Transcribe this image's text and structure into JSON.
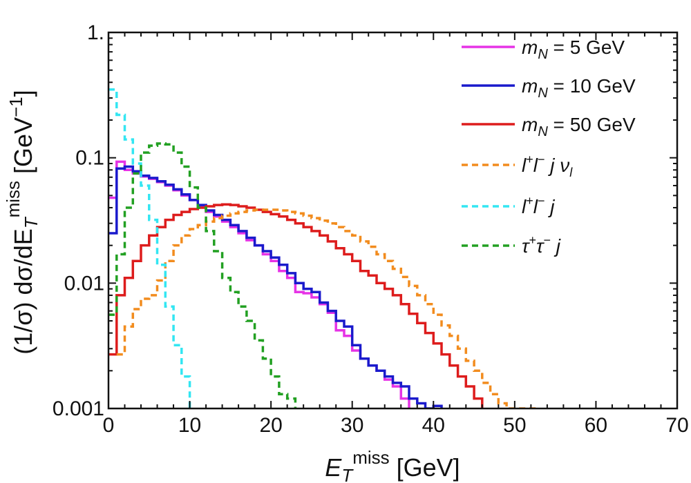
{
  "chart_data": {
    "type": "line",
    "title": "",
    "xlabel_main": "E",
    "xlabel_sub": "T",
    "xlabel_sup": "miss",
    "xlabel_unit": " [GeV]",
    "ylabel_prefix": "(1/σ) dσ/dE",
    "ylabel_sub": "T",
    "ylabel_sup": "miss",
    "ylabel_unit": " [GeV",
    "ylabel_unit_sup": "−1",
    "ylabel_close": "]",
    "xlim": [
      0,
      70
    ],
    "ylim": [
      0.001,
      1
    ],
    "yscale": "log",
    "xticks": [
      0,
      10,
      20,
      30,
      40,
      50,
      60,
      70
    ],
    "xtick_labels": [
      "0",
      "10",
      "20",
      "30",
      "40",
      "50",
      "60",
      "70"
    ],
    "yticks": [
      0.001,
      0.01,
      0.1,
      1
    ],
    "ytick_labels": [
      "0.001",
      "0.01",
      "0.1",
      "1."
    ],
    "bin_width": 1,
    "legend_position": "top-right",
    "series": [
      {
        "name": "m_N = 5 GeV",
        "legend": {
          "sym": "m",
          "sub": "N",
          "rest": " = 5 GeV"
        },
        "color": "#e633e6",
        "style": "solid",
        "x_start": 0,
        "values": [
          0.048,
          0.093,
          0.08,
          0.075,
          0.071,
          0.068,
          0.064,
          0.06,
          0.055,
          0.05,
          0.046,
          0.041,
          0.037,
          0.034,
          0.031,
          0.028,
          0.025,
          0.022,
          0.02,
          0.017,
          0.015,
          0.0125,
          0.011,
          0.0085,
          0.0083,
          0.0077,
          0.0068,
          0.0058,
          0.0042,
          0.0038,
          0.0029,
          0.0025,
          0.0022,
          0.002,
          0.0017,
          0.0015,
          0.0012
        ]
      },
      {
        "name": "m_N = 10 GeV",
        "legend": {
          "sym": "m",
          "sub": "N",
          "rest": " = 10 GeV"
        },
        "color": "#1a1acc",
        "style": "solid",
        "x_start": 0,
        "values": [
          0.025,
          0.082,
          0.085,
          0.078,
          0.072,
          0.069,
          0.065,
          0.061,
          0.056,
          0.051,
          0.046,
          0.042,
          0.038,
          0.035,
          0.032,
          0.029,
          0.026,
          0.023,
          0.02,
          0.018,
          0.016,
          0.014,
          0.012,
          0.01,
          0.009,
          0.0085,
          0.007,
          0.006,
          0.005,
          0.0045,
          0.0032,
          0.0025,
          0.0022,
          0.002,
          0.0018,
          0.0016,
          0.0015,
          0.0012,
          0.0011,
          0.001,
          0.00105
        ]
      },
      {
        "name": "m_N = 50 GeV",
        "legend": {
          "sym": "m",
          "sub": "N",
          "rest": " = 50 GeV"
        },
        "color": "#dd1c1c",
        "style": "solid",
        "x_start": 0,
        "values": [
          0.0027,
          0.008,
          0.011,
          0.015,
          0.02,
          0.024,
          0.028,
          0.032,
          0.035,
          0.037,
          0.039,
          0.04,
          0.041,
          0.042,
          0.0425,
          0.042,
          0.041,
          0.04,
          0.0385,
          0.037,
          0.0355,
          0.034,
          0.032,
          0.03,
          0.028,
          0.026,
          0.024,
          0.0215,
          0.019,
          0.017,
          0.015,
          0.0125,
          0.0115,
          0.01,
          0.009,
          0.008,
          0.0068,
          0.0057,
          0.0048,
          0.004,
          0.0033,
          0.0027,
          0.0022,
          0.0018,
          0.0015,
          0.0012
        ]
      },
      {
        "name": "l+l- j nu_l",
        "legend": {
          "kind": "llj",
          "nu": true
        },
        "color": "#f28c1e",
        "style": "dashed",
        "x_start": 1,
        "values": [
          0.0027,
          0.0045,
          0.0062,
          0.0075,
          0.008,
          0.0105,
          0.015,
          0.02,
          0.024,
          0.027,
          0.029,
          0.031,
          0.033,
          0.0345,
          0.036,
          0.037,
          0.038,
          0.0385,
          0.0385,
          0.0385,
          0.038,
          0.037,
          0.036,
          0.0345,
          0.033,
          0.0315,
          0.03,
          0.028,
          0.026,
          0.024,
          0.0215,
          0.0195,
          0.017,
          0.015,
          0.013,
          0.0112,
          0.0095,
          0.008,
          0.0068,
          0.0056,
          0.0046,
          0.0038,
          0.003,
          0.0024,
          0.002,
          0.0016,
          0.0013,
          0.0011,
          0.001,
          0.00097,
          0.00095,
          0.00093
        ]
      },
      {
        "name": "l+l- j",
        "legend": {
          "kind": "llj",
          "nu": false
        },
        "color": "#33e6f2",
        "style": "dashed",
        "x_start": 0,
        "values": [
          0.35,
          0.22,
          0.14,
          0.09,
          0.06,
          0.032,
          0.014,
          0.0065,
          0.0032,
          0.0018
        ]
      },
      {
        "name": "tau+tau- j",
        "legend": {
          "kind": "ttj"
        },
        "color": "#22a022",
        "style": "dashed",
        "x_start": 0,
        "values": [
          0.0056,
          0.017,
          0.04,
          0.075,
          0.11,
          0.125,
          0.13,
          0.128,
          0.11,
          0.085,
          0.058,
          0.04,
          0.026,
          0.018,
          0.011,
          0.0085,
          0.0065,
          0.005,
          0.0035,
          0.0025,
          0.0018,
          0.0013,
          0.0012
        ]
      }
    ]
  }
}
